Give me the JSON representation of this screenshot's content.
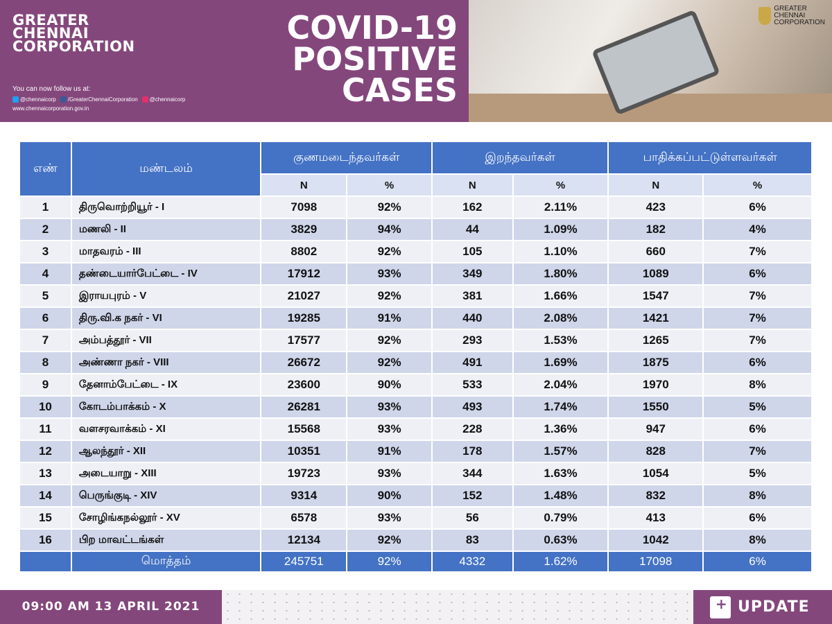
{
  "header": {
    "org_name": [
      "GREATER",
      "CHENNAI",
      "CORPORATION"
    ],
    "follow_text": "You can now follow us at:",
    "twitter": "@chennaicorp",
    "facebook": "/GreaterChennaiCorporation",
    "instagram": "@chennaicorp",
    "website": "www.chennaicorporation.gov.in",
    "title": [
      "COVID-19",
      "POSITIVE",
      "CASES"
    ],
    "logo_text": [
      "GREATER",
      "CHENNAI",
      "CORPORATION"
    ]
  },
  "colors": {
    "brand_purple": "#84477c",
    "table_header_blue": "#4472c4"
  },
  "table": {
    "headers": {
      "sno": "எண்",
      "zone": "மண்டலம்",
      "recovered": "குணமடைந்தவர்கள்",
      "deaths": "இறந்தவர்கள்",
      "active": "பாதிக்கப்பட்டுள்ளவர்கள்",
      "n": "N",
      "pct": "%"
    },
    "rows": [
      [
        "1",
        "திருவொற்றியூர் - I",
        "7098",
        "92%",
        "162",
        "2.11%",
        "423",
        "6%"
      ],
      [
        "2",
        "மணலி - II",
        "3829",
        "94%",
        "44",
        "1.09%",
        "182",
        "4%"
      ],
      [
        "3",
        "மாதவரம் - III",
        "8802",
        "92%",
        "105",
        "1.10%",
        "660",
        "7%"
      ],
      [
        "4",
        "தண்டையார்பேட்டை - IV",
        "17912",
        "93%",
        "349",
        "1.80%",
        "1089",
        "6%"
      ],
      [
        "5",
        "இராயபுரம் - V",
        "21027",
        "92%",
        "381",
        "1.66%",
        "1547",
        "7%"
      ],
      [
        "6",
        "திரு.வி.க நகர் - VI",
        "19285",
        "91%",
        "440",
        "2.08%",
        "1421",
        "7%"
      ],
      [
        "7",
        "அம்பத்தூர் - VII",
        "17577",
        "92%",
        "293",
        "1.53%",
        "1265",
        "7%"
      ],
      [
        "8",
        "அண்ணா நகர் - VIII",
        "26672",
        "92%",
        "491",
        "1.69%",
        "1875",
        "6%"
      ],
      [
        "9",
        "தேனாம்பேட்டை - IX",
        "23600",
        "90%",
        "533",
        "2.04%",
        "1970",
        "8%"
      ],
      [
        "10",
        "கோடம்பாக்கம் - X",
        "26281",
        "93%",
        "493",
        "1.74%",
        "1550",
        "5%"
      ],
      [
        "11",
        "வளசரவாக்கம் - XI",
        "15568",
        "93%",
        "228",
        "1.36%",
        "947",
        "6%"
      ],
      [
        "12",
        "ஆலந்தூர் - XII",
        "10351",
        "91%",
        "178",
        "1.57%",
        "828",
        "7%"
      ],
      [
        "13",
        "அடையாறு - XIII",
        "19723",
        "93%",
        "344",
        "1.63%",
        "1054",
        "5%"
      ],
      [
        "14",
        "பெருங்குடி - XIV",
        "9314",
        "90%",
        "152",
        "1.48%",
        "832",
        "8%"
      ],
      [
        "15",
        "சோழிங்கநல்லூர் - XV",
        "6578",
        "93%",
        "56",
        "0.79%",
        "413",
        "6%"
      ],
      [
        "16",
        "பிற மாவட்டங்கள்",
        "12134",
        "92%",
        "83",
        "0.63%",
        "1042",
        "8%"
      ]
    ],
    "total": [
      "",
      "மொத்தம்",
      "245751",
      "92%",
      "4332",
      "1.62%",
      "17098",
      "6%"
    ]
  },
  "footer": {
    "datetime": "09:00 AM 13 APRIL 2021",
    "update_label": "UPDATE"
  }
}
